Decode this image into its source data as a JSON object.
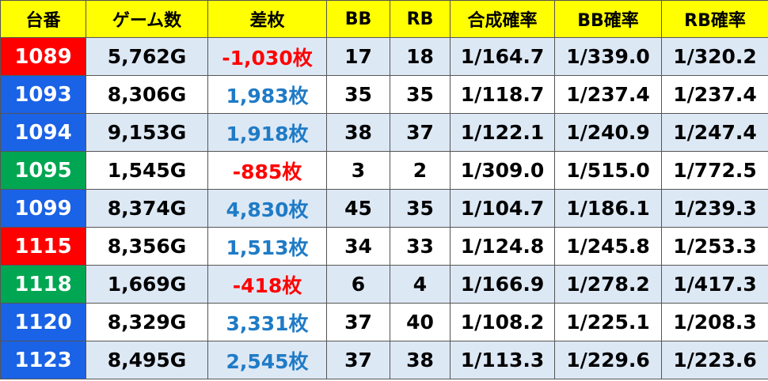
{
  "table": {
    "header": [
      "台番",
      "ゲーム数",
      "差枚",
      "BB",
      "RB",
      "合成確率",
      "BB確率",
      "RB確率"
    ],
    "rows": [
      [
        "1089",
        "5,762G",
        "-1,030枚",
        "17",
        "18",
        "1/164.7",
        "1/339.0",
        "1/320.2"
      ],
      [
        "1093",
        "8,306G",
        "1,983枚",
        "35",
        "35",
        "1/118.7",
        "1/237.4",
        "1/237.4"
      ],
      [
        "1094",
        "9,153G",
        "1,918枚",
        "38",
        "37",
        "1/122.1",
        "1/240.9",
        "1/247.4"
      ],
      [
        "1095",
        "1,545G",
        "-885枚",
        "3",
        "2",
        "1/309.0",
        "1/515.0",
        "1/772.5"
      ],
      [
        "1099",
        "8,374G",
        "4,830枚",
        "45",
        "35",
        "1/104.7",
        "1/186.1",
        "1/239.3"
      ],
      [
        "1115",
        "8,356G",
        "1,513枚",
        "34",
        "33",
        "1/124.8",
        "1/245.8",
        "1/253.3"
      ],
      [
        "1118",
        "1,669G",
        "-418枚",
        "6",
        "4",
        "1/166.9",
        "1/278.2",
        "1/417.3"
      ],
      [
        "1120",
        "8,329G",
        "3,331枚",
        "37",
        "40",
        "1/108.2",
        "1/225.1",
        "1/208.3"
      ],
      [
        "1123",
        "8,495G",
        "2,545枚",
        "37",
        "38",
        "1/113.3",
        "1/229.6",
        "1/223.6"
      ]
    ],
    "machine_colors": [
      "#ff0000",
      "#1a62e6",
      "#1a62e6",
      "#00a651",
      "#1a62e6",
      "#ff0000",
      "#00a651",
      "#1a62e6",
      "#1a62e6"
    ],
    "diff_colors": [
      "#ff0000",
      "#1f7bc6",
      "#1f7bc6",
      "#ff0000",
      "#1f7bc6",
      "#1f7bc6",
      "#ff0000",
      "#1f7bc6",
      "#1f7bc6"
    ]
  }
}
